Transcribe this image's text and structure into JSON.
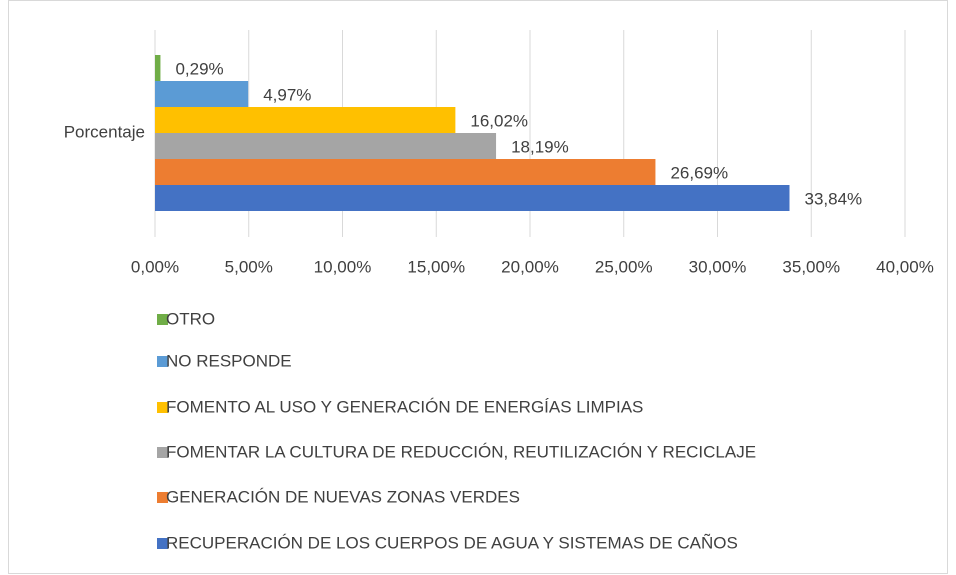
{
  "chart_data": {
    "type": "hbar",
    "categories": [
      "Porcentaje"
    ],
    "series": [
      {
        "name": "OTRO",
        "color": "#70ad47",
        "values": [
          0.29
        ],
        "value_labels": [
          "0,29%"
        ]
      },
      {
        "name": "NO RESPONDE",
        "color": "#5b9bd5",
        "values": [
          4.97
        ],
        "value_labels": [
          "4,97%"
        ]
      },
      {
        "name": "FOMENTO AL USO Y GENERACIÓN DE ENERGÍAS LIMPIAS",
        "color": "#ffc000",
        "values": [
          16.02
        ],
        "value_labels": [
          "16,02%"
        ]
      },
      {
        "name": "FOMENTAR LA CULTURA DE REDUCCIÓN, REUTILIZACIÓN Y RECICLAJE",
        "color": "#a5a5a5",
        "values": [
          18.19
        ],
        "value_labels": [
          "18,19%"
        ]
      },
      {
        "name": "GENERACIÓN DE NUEVAS ZONAS VERDES",
        "color": "#ed7d31",
        "values": [
          26.69
        ],
        "value_labels": [
          "26,69%"
        ]
      },
      {
        "name": "RECUPERACIÓN DE LOS CUERPOS DE AGUA Y SISTEMAS DE CAÑOS",
        "color": "#4472c4",
        "values": [
          33.84
        ],
        "value_labels": [
          "33,84%"
        ]
      }
    ],
    "xlim": [
      0,
      40
    ],
    "xticks": [
      {
        "value": 0,
        "label": "0,00%"
      },
      {
        "value": 5,
        "label": "5,00%"
      },
      {
        "value": 10,
        "label": "10,00%"
      },
      {
        "value": 15,
        "label": "15,00%"
      },
      {
        "value": 20,
        "label": "20,00%"
      },
      {
        "value": 25,
        "label": "25,00%"
      },
      {
        "value": 30,
        "label": "30,00%"
      },
      {
        "value": 35,
        "label": "35,00%"
      },
      {
        "value": 40,
        "label": "40,00%"
      }
    ],
    "grid": true
  }
}
